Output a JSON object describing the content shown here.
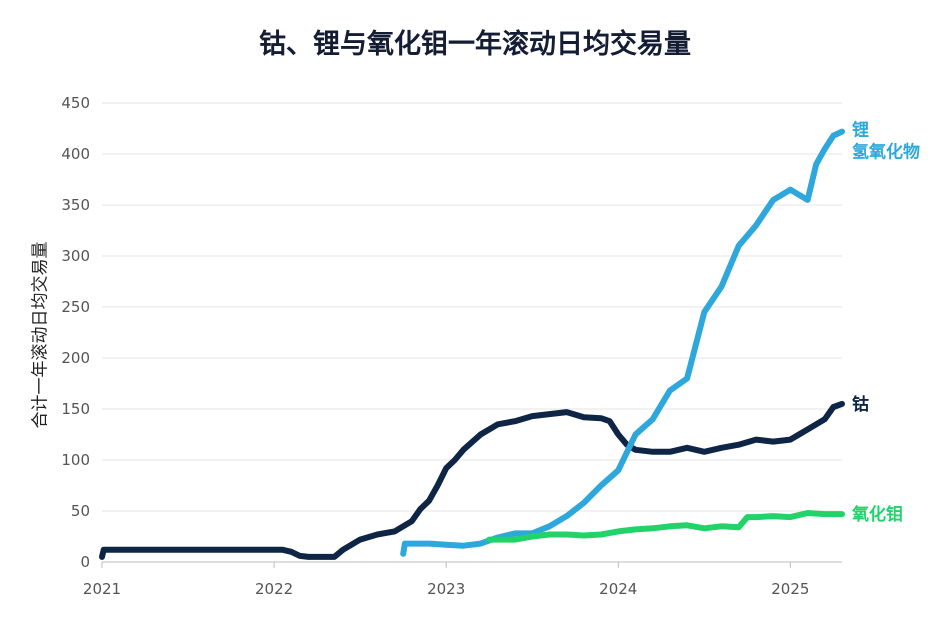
{
  "chart_data": {
    "type": "line",
    "title": "钴、锂与氧化钼一年滚动日均交易量",
    "ylabel": "合计一年滚动日均交易量",
    "xlabel": "",
    "ylim": [
      0,
      450
    ],
    "xlim": [
      2021.0,
      2025.3
    ],
    "y_ticks": [
      "0",
      "50",
      "100",
      "150",
      "200",
      "250",
      "300",
      "350",
      "400",
      "450"
    ],
    "y_tick_values": [
      0,
      50,
      100,
      150,
      200,
      250,
      300,
      350,
      400,
      450
    ],
    "x_ticks": [
      "2021",
      "2022",
      "2023",
      "2024",
      "2025"
    ],
    "x_tick_values": [
      2021,
      2022,
      2023,
      2024,
      2025
    ],
    "grid": "horizontal",
    "series": [
      {
        "name": "钴",
        "color": "#0f2545",
        "label_lines": [
          "钴"
        ],
        "x": [
          2021.0,
          2021.01,
          2021.5,
          2022.05,
          2022.1,
          2022.15,
          2022.2,
          2022.35,
          2022.4,
          2022.5,
          2022.6,
          2022.7,
          2022.8,
          2022.85,
          2022.9,
          2022.95,
          2023.0,
          2023.05,
          2023.1,
          2023.2,
          2023.3,
          2023.4,
          2023.5,
          2023.6,
          2023.7,
          2023.8,
          2023.9,
          2023.95,
          2024.0,
          2024.05,
          2024.1,
          2024.2,
          2024.3,
          2024.4,
          2024.5,
          2024.6,
          2024.7,
          2024.8,
          2024.9,
          2025.0,
          2025.05,
          2025.1,
          2025.15,
          2025.2,
          2025.25,
          2025.3
        ],
        "values": [
          5,
          12,
          12,
          12,
          10,
          6,
          5,
          5,
          12,
          22,
          27,
          30,
          40,
          52,
          60,
          75,
          92,
          100,
          110,
          125,
          135,
          138,
          143,
          145,
          147,
          142,
          141,
          138,
          125,
          115,
          110,
          108,
          108,
          112,
          108,
          112,
          115,
          120,
          118,
          120,
          125,
          130,
          135,
          140,
          152,
          155
        ]
      },
      {
        "name": "锂氢氧化物",
        "color": "#2ea8dc",
        "label_lines": [
          "锂",
          "氢氧化物"
        ],
        "x": [
          2022.75,
          2022.76,
          2022.9,
          2023.0,
          2023.1,
          2023.2,
          2023.3,
          2023.4,
          2023.5,
          2023.6,
          2023.7,
          2023.8,
          2023.9,
          2024.0,
          2024.1,
          2024.2,
          2024.3,
          2024.4,
          2024.5,
          2024.6,
          2024.7,
          2024.8,
          2024.9,
          2025.0,
          2025.05,
          2025.1,
          2025.15,
          2025.2,
          2025.25,
          2025.3
        ],
        "values": [
          8,
          18,
          18,
          17,
          16,
          18,
          24,
          28,
          28,
          35,
          45,
          58,
          75,
          90,
          125,
          140,
          168,
          180,
          245,
          270,
          310,
          330,
          355,
          365,
          360,
          355,
          390,
          405,
          418,
          422
        ]
      },
      {
        "name": "氧化钼",
        "color": "#22d36a",
        "label_lines": [
          "氧化钼"
        ],
        "x": [
          2023.25,
          2023.4,
          2023.5,
          2023.6,
          2023.7,
          2023.8,
          2023.9,
          2024.0,
          2024.1,
          2024.2,
          2024.3,
          2024.4,
          2024.5,
          2024.6,
          2024.7,
          2024.75,
          2024.8,
          2024.9,
          2025.0,
          2025.05,
          2025.1,
          2025.2,
          2025.3
        ],
        "values": [
          22,
          22,
          25,
          27,
          27,
          26,
          27,
          30,
          32,
          33,
          35,
          36,
          33,
          35,
          34,
          44,
          44,
          45,
          44,
          46,
          48,
          47,
          47
        ]
      }
    ]
  }
}
